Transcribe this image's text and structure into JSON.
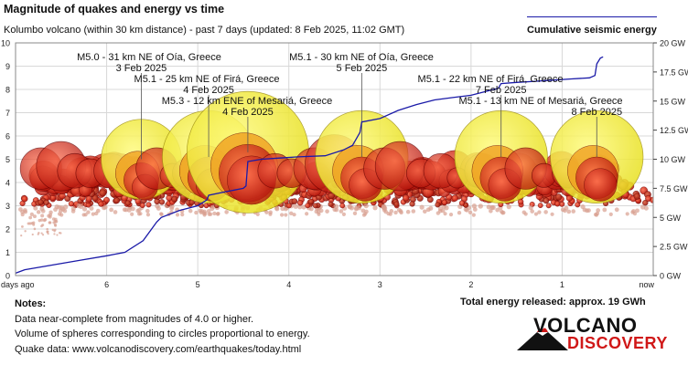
{
  "header": {
    "title": "Magnitude of quakes and energy vs time",
    "subtitle": "Kolumbo volcano (within 30 km distance) - past 7 days (updated: 8 Feb 2025, 11:02 GMT)",
    "legend_label": "Cumulative seismic energy"
  },
  "notes": {
    "heading": "Notes:",
    "line1": "Data near-complete from magnitudes of 4.0 or higher.",
    "line2": "Volume of spheres corresponding to circles proportional to energy.",
    "line3": "Quake data: www.volcanodiscovery.com/earthquakes/today.html"
  },
  "total_energy": "Total energy released: approx. 19 GWh",
  "logo": {
    "line1": "VOLCANO",
    "line2": "DISCOVERY"
  },
  "colors": {
    "energy_line": "#1a1aa8",
    "quake_fill_large": "#f5f040",
    "quake_fill_small": "#e02010",
    "grid": "#cfcfcf"
  },
  "chart_data": {
    "type": "scatter",
    "x_axis": {
      "range": [
        7,
        0
      ],
      "ticks": [
        "days ago",
        "6",
        "5",
        "4",
        "3",
        "2",
        "1",
        "now"
      ],
      "tick_values": [
        7,
        6,
        5,
        4,
        3,
        2,
        1,
        0
      ],
      "reversed": true
    },
    "y_left": {
      "range": [
        0,
        10
      ],
      "ticks": [
        "0",
        "1",
        "2",
        "3",
        "4",
        "5",
        "6",
        "7",
        "8",
        "9",
        "10"
      ]
    },
    "y_right": {
      "range": [
        0,
        20
      ],
      "unit": "GW",
      "ticks": [
        "0 GW",
        "2.5 GW",
        "5 GW",
        "7.5 GW",
        "10 GW",
        "12.5 GW",
        "15 GW",
        "17.5 GW",
        "20 GW"
      ],
      "tick_values": [
        0,
        2.5,
        5,
        7.5,
        10,
        12.5,
        15,
        17.5,
        20
      ]
    },
    "grid": true,
    "annotations": [
      {
        "line1": "M5.0 - 31 km NE of Oía, Greece",
        "line2": "3 Feb 2025",
        "days_ago": 5.62,
        "mag": 5.0
      },
      {
        "line1": "M5.1 - 25 km NE of Firá, Greece",
        "line2": "4 Feb 2025",
        "days_ago": 4.88,
        "mag": 5.1
      },
      {
        "line1": "M5.3 - 12 km ENE of Mesariá, Greece",
        "line2": "4 Feb 2025",
        "days_ago": 4.45,
        "mag": 5.3
      },
      {
        "line1": "M5.1 - 30 km NE of Oía, Greece",
        "line2": "5 Feb 2025",
        "days_ago": 3.2,
        "mag": 5.1
      },
      {
        "line1": "M5.1 - 22 km NE of Firá, Greece",
        "line2": "7 Feb 2025",
        "days_ago": 1.67,
        "mag": 5.1
      },
      {
        "line1": "M5.1 - 13 km NE of Mesariá, Greece",
        "line2": "8 Feb 2025",
        "days_ago": 0.62,
        "mag": 5.1
      }
    ],
    "cumulative_energy_gw": {
      "days_ago": [
        7,
        6.9,
        6.6,
        6.3,
        6.0,
        5.8,
        5.6,
        5.45,
        5.4,
        5.2,
        5.0,
        4.9,
        4.88,
        4.7,
        4.5,
        4.47,
        4.45,
        4.3,
        4.1,
        3.9,
        3.6,
        3.4,
        3.3,
        3.22,
        3.2,
        3.0,
        2.8,
        2.6,
        2.4,
        2.2,
        2.0,
        1.8,
        1.7,
        1.67,
        1.5,
        1.3,
        1.1,
        0.9,
        0.7,
        0.64,
        0.62,
        0.58,
        0.55
      ],
      "values": [
        0.2,
        0.5,
        0.9,
        1.3,
        1.7,
        2.0,
        3.0,
        4.6,
        5.0,
        5.6,
        6.0,
        6.5,
        6.9,
        7.2,
        7.5,
        7.7,
        9.8,
        10.0,
        10.1,
        10.2,
        10.3,
        10.8,
        11.2,
        12.3,
        13.2,
        13.5,
        14.2,
        14.7,
        15.1,
        15.3,
        15.5,
        15.9,
        16.1,
        16.5,
        16.6,
        16.7,
        16.8,
        16.9,
        17.0,
        17.2,
        18.2,
        18.7,
        18.8
      ]
    },
    "large_quakes": [
      {
        "days_ago": 6.72,
        "mag": 4.6
      },
      {
        "days_ago": 6.5,
        "mag": 4.7
      },
      {
        "days_ago": 6.35,
        "mag": 4.5
      },
      {
        "days_ago": 6.18,
        "mag": 4.4
      },
      {
        "days_ago": 5.95,
        "mag": 4.5
      },
      {
        "days_ago": 5.78,
        "mag": 4.2
      },
      {
        "days_ago": 5.62,
        "mag": 5.0
      },
      {
        "days_ago": 5.45,
        "mag": 4.6
      },
      {
        "days_ago": 5.28,
        "mag": 4.3
      },
      {
        "days_ago": 5.12,
        "mag": 4.4
      },
      {
        "days_ago": 4.88,
        "mag": 5.1
      },
      {
        "days_ago": 4.45,
        "mag": 5.3
      },
      {
        "days_ago": 4.15,
        "mag": 4.5
      },
      {
        "days_ago": 3.97,
        "mag": 4.4
      },
      {
        "days_ago": 3.72,
        "mag": 4.6
      },
      {
        "days_ago": 3.5,
        "mag": 4.8
      },
      {
        "days_ago": 3.2,
        "mag": 5.1
      },
      {
        "days_ago": 2.95,
        "mag": 4.6
      },
      {
        "days_ago": 2.78,
        "mag": 4.7
      },
      {
        "days_ago": 2.55,
        "mag": 4.4
      },
      {
        "days_ago": 2.33,
        "mag": 4.5
      },
      {
        "days_ago": 2.15,
        "mag": 4.2
      },
      {
        "days_ago": 1.88,
        "mag": 4.5
      },
      {
        "days_ago": 1.67,
        "mag": 5.1
      },
      {
        "days_ago": 1.4,
        "mag": 4.6
      },
      {
        "days_ago": 1.2,
        "mag": 4.3
      },
      {
        "days_ago": 0.95,
        "mag": 4.4
      },
      {
        "days_ago": 0.62,
        "mag": 5.1
      }
    ]
  }
}
